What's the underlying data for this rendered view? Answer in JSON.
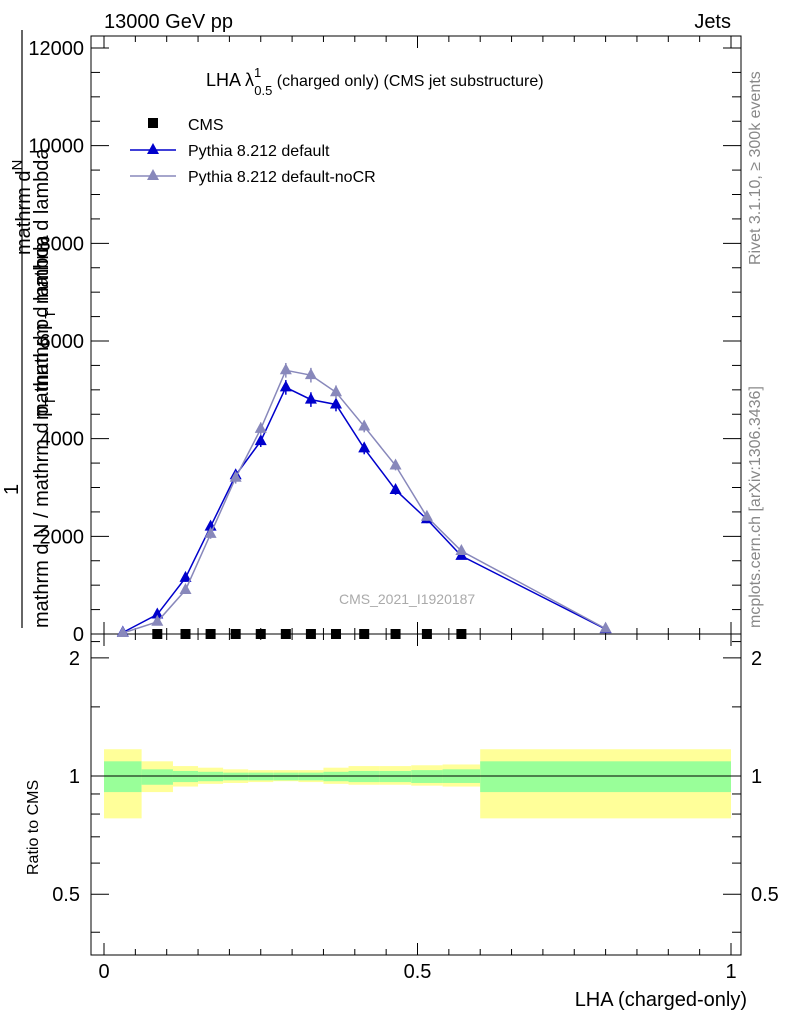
{
  "header": {
    "left": "13000 GeV pp",
    "right": "Jets"
  },
  "side": {
    "rivet": "Rivet 3.1.10, ≥ 300k events",
    "mcplots": "mcplots.cern.ch [arXiv:1306.3436]"
  },
  "plot_title": {
    "main": "LHA λ",
    "sup": "1",
    "sub": "0.5",
    "rest": " (charged only) (CMS jet substructure)"
  },
  "watermark": "CMS_2021_I1920187",
  "legend": [
    {
      "label": "CMS",
      "color": "#000000",
      "marker": "square"
    },
    {
      "label": "Pythia 8.212 default",
      "color": "#0000cc",
      "marker": "triangle"
    },
    {
      "label": "Pythia 8.212 default-noCR",
      "color": "#8888bb",
      "marker": "triangle"
    }
  ],
  "ylabel_parts": {
    "one": "1",
    "num1": "mathrm d",
    "num1sup": "N",
    "den1": "mathrm d p",
    "den1sub": "T",
    "den1b": " mathrm d lambda",
    "full": "mathrm d N / mathrm d p",
    "fullsub": "T",
    "fullb": " mathrm d lambda"
  },
  "ratio_ylabel": "Ratio to CMS",
  "xlabel": "LHA (charged-only)",
  "chart_data": [
    {
      "type": "line",
      "title": "LHA λ^1_0.5 (charged only) (CMS jet substructure)",
      "xlabel": "LHA (charged-only)",
      "ylabel": "1/N dN/dpT dλ",
      "xlim": [
        0,
        1
      ],
      "ylim": [
        0,
        12000
      ],
      "yticks": [
        0,
        2000,
        4000,
        6000,
        8000,
        10000,
        12000
      ],
      "ytick_labels": [
        "0",
        "2000",
        "4000",
        "6000",
        "8000",
        "10000",
        "12000"
      ],
      "series": [
        {
          "name": "CMS",
          "x": [
            0.085,
            0.13,
            0.17,
            0.21,
            0.25,
            0.29,
            0.33,
            0.37,
            0.415,
            0.465,
            0.515,
            0.57
          ],
          "y": [
            0,
            0,
            0,
            0,
            0,
            0,
            0,
            0,
            0,
            0,
            0,
            0
          ]
        },
        {
          "name": "Pythia 8.212 default",
          "x": [
            0.03,
            0.085,
            0.13,
            0.17,
            0.21,
            0.25,
            0.29,
            0.33,
            0.37,
            0.415,
            0.465,
            0.515,
            0.57,
            0.8
          ],
          "y": [
            30,
            400,
            1150,
            2200,
            3250,
            3950,
            5050,
            4800,
            4700,
            3800,
            2950,
            2350,
            1600,
            100
          ],
          "err": [
            20,
            60,
            80,
            100,
            120,
            120,
            150,
            150,
            140,
            120,
            100,
            80,
            60,
            20
          ]
        },
        {
          "name": "Pythia 8.212 default-noCR",
          "x": [
            0.03,
            0.085,
            0.13,
            0.17,
            0.21,
            0.25,
            0.29,
            0.33,
            0.37,
            0.415,
            0.465,
            0.515,
            0.57,
            0.8
          ],
          "y": [
            20,
            250,
            900,
            2050,
            3200,
            4200,
            5400,
            5300,
            4950,
            4250,
            3450,
            2400,
            1700,
            110
          ],
          "err": [
            20,
            50,
            80,
            100,
            120,
            130,
            150,
            150,
            140,
            120,
            100,
            80,
            60,
            20
          ]
        }
      ]
    },
    {
      "type": "area",
      "title": "Ratio to CMS",
      "ylabel": "Ratio to CMS",
      "xlabel": "LHA (charged-only)",
      "xlim": [
        0,
        1
      ],
      "ylim": [
        0.35,
        2.3
      ],
      "xticks": [
        0,
        0.5,
        1
      ],
      "xtick_labels": [
        "0",
        "0.5",
        "1"
      ],
      "yticks": [
        0.5,
        1,
        2
      ],
      "ytick_labels": [
        "0.5",
        "1",
        "2"
      ],
      "bins": [
        0,
        0.06,
        0.11,
        0.15,
        0.19,
        0.23,
        0.27,
        0.31,
        0.35,
        0.39,
        0.44,
        0.49,
        0.54,
        0.6,
        1.0
      ],
      "band_inner": [
        [
          0.91,
          1.09
        ],
        [
          0.95,
          1.04
        ],
        [
          0.965,
          1.03
        ],
        [
          0.97,
          1.025
        ],
        [
          0.975,
          1.02
        ],
        [
          0.975,
          1.02
        ],
        [
          0.975,
          1.02
        ],
        [
          0.975,
          1.02
        ],
        [
          0.97,
          1.025
        ],
        [
          0.965,
          1.03
        ],
        [
          0.965,
          1.03
        ],
        [
          0.96,
          1.035
        ],
        [
          0.96,
          1.04
        ],
        [
          0.91,
          1.09
        ]
      ],
      "band_outer": [
        [
          0.78,
          1.17
        ],
        [
          0.91,
          1.09
        ],
        [
          0.94,
          1.06
        ],
        [
          0.955,
          1.05
        ],
        [
          0.96,
          1.04
        ],
        [
          0.965,
          1.035
        ],
        [
          0.97,
          1.035
        ],
        [
          0.965,
          1.035
        ],
        [
          0.955,
          1.05
        ],
        [
          0.95,
          1.06
        ],
        [
          0.95,
          1.06
        ],
        [
          0.945,
          1.065
        ],
        [
          0.94,
          1.07
        ],
        [
          0.78,
          1.17
        ]
      ],
      "band_colors": {
        "outer": "#ffff99",
        "inner": "#99ff99"
      },
      "reference_line": 1
    }
  ]
}
